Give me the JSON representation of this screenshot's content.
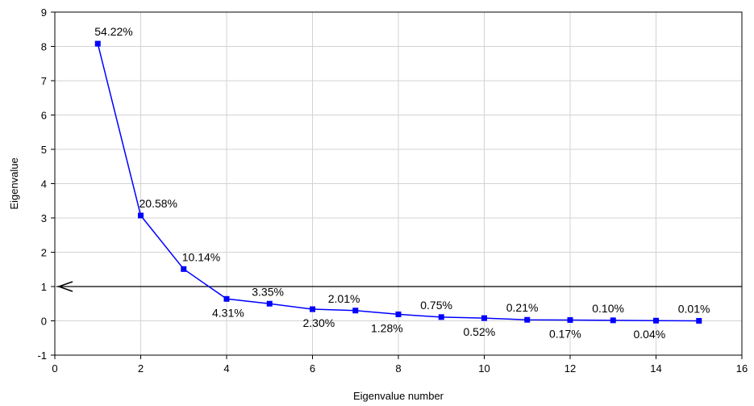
{
  "chart_data": {
    "type": "line",
    "xlabel": "Eigenvalue number",
    "ylabel": "Eigenvalue",
    "xlim": [
      0,
      16
    ],
    "ylim": [
      -1,
      9
    ],
    "xticks": [
      "0",
      "2",
      "4",
      "6",
      "8",
      "10",
      "12",
      "14",
      "16"
    ],
    "yticks": [
      "-1",
      "0",
      "1",
      "2",
      "3",
      "4",
      "5",
      "6",
      "7",
      "8",
      "9"
    ],
    "grid": true,
    "series_color": "#0000ff",
    "reference_line": {
      "y": 1,
      "color": "#000000",
      "arrow": "left"
    },
    "points": [
      {
        "x": 1,
        "y": 8.08,
        "label": "54.22%"
      },
      {
        "x": 2,
        "y": 3.07,
        "label": "20.58%"
      },
      {
        "x": 3,
        "y": 1.51,
        "label": "10.14%"
      },
      {
        "x": 4,
        "y": 0.64,
        "label": "4.31%"
      },
      {
        "x": 5,
        "y": 0.5,
        "label": "3.35%"
      },
      {
        "x": 6,
        "y": 0.34,
        "label": "2.30%"
      },
      {
        "x": 7,
        "y": 0.3,
        "label": "2.01%"
      },
      {
        "x": 8,
        "y": 0.19,
        "label": "1.28%"
      },
      {
        "x": 9,
        "y": 0.11,
        "label": "0.75%"
      },
      {
        "x": 10,
        "y": 0.08,
        "label": "0.52%"
      },
      {
        "x": 11,
        "y": 0.03,
        "label": "0.21%"
      },
      {
        "x": 12,
        "y": 0.025,
        "label": "0.17%"
      },
      {
        "x": 13,
        "y": 0.015,
        "label": "0.10%"
      },
      {
        "x": 14,
        "y": 0.006,
        "label": "0.04%"
      },
      {
        "x": 15,
        "y": 0.001,
        "label": "0.01%"
      }
    ]
  }
}
